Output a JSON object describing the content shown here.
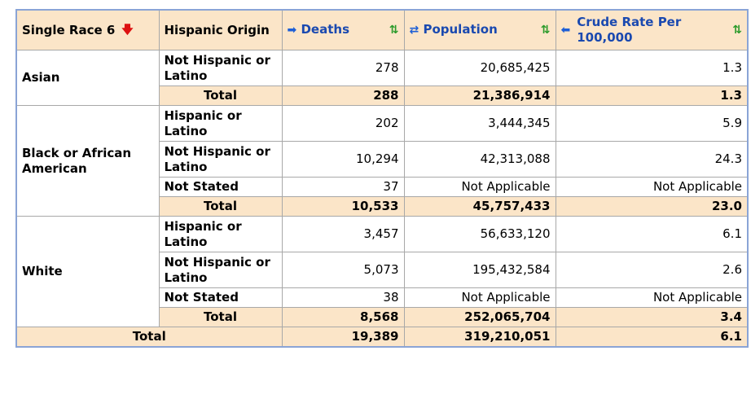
{
  "headers": {
    "race": "Single Race 6",
    "hispanic": "Hispanic Origin",
    "deaths": "Deaths",
    "population": "Population",
    "rate": "Crude Rate Per 100,000"
  },
  "icons": {
    "race_sort": "sort-down-red",
    "deaths_move": "arrow-right",
    "population_move": "swap-arrows",
    "rate_move": "arrow-left",
    "sort": "sort-up-down-green"
  },
  "groups": [
    {
      "race": "Asian",
      "rows": [
        {
          "origin": "Not Hispanic or Latino",
          "deaths": "278",
          "population": "20,685,425",
          "rate": "1.3"
        }
      ],
      "total": {
        "label": "Total",
        "deaths": "288",
        "population": "21,386,914",
        "rate": "1.3"
      }
    },
    {
      "race": "Black or African American",
      "rows": [
        {
          "origin": "Hispanic or Latino",
          "deaths": "202",
          "population": "3,444,345",
          "rate": "5.9"
        },
        {
          "origin": "Not Hispanic or Latino",
          "deaths": "10,294",
          "population": "42,313,088",
          "rate": "24.3"
        },
        {
          "origin": "Not Stated",
          "deaths": "37",
          "population": "Not Applicable",
          "rate": "Not Applicable"
        }
      ],
      "total": {
        "label": "Total",
        "deaths": "10,533",
        "population": "45,757,433",
        "rate": "23.0"
      }
    },
    {
      "race": "White",
      "rows": [
        {
          "origin": "Hispanic or Latino",
          "deaths": "3,457",
          "population": "56,633,120",
          "rate": "6.1"
        },
        {
          "origin": "Not Hispanic or Latino",
          "deaths": "5,073",
          "population": "195,432,584",
          "rate": "2.6"
        },
        {
          "origin": "Not Stated",
          "deaths": "38",
          "population": "Not Applicable",
          "rate": "Not Applicable"
        }
      ],
      "total": {
        "label": "Total",
        "deaths": "8,568",
        "population": "252,065,704",
        "rate": "3.4"
      }
    }
  ],
  "grand_total": {
    "label": "Total",
    "deaths": "19,389",
    "population": "319,210,051",
    "rate": "6.1"
  }
}
